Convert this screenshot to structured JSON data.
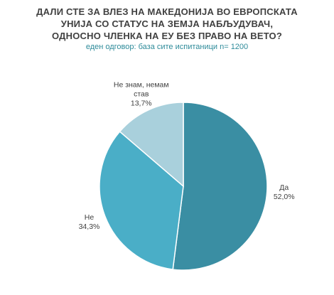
{
  "chart_data": {
    "type": "pie",
    "title": "ДАЛИ СТЕ ЗА ВЛЕЗ НА МАКЕДОНИЈА ВО ЕВРОПСКАТА УНИЈА СО СТАТУС НА ЗЕМЈА НАБЉУДУВАЧ, ОДНОСНО ЧЛЕНКА НА ЕУ БЕЗ ПРАВО НА ВЕТО?",
    "subtitle": "еден одговор: база сите испитаници n= 1200",
    "categories": [
      "Да",
      "Не",
      "Не знам, немам став"
    ],
    "values": [
      52.0,
      34.3,
      13.7
    ],
    "value_labels": [
      "52,0%",
      "34,3%",
      "13,7%"
    ],
    "colors": [
      "#3a8ea3",
      "#4aaec7",
      "#a9d0dc"
    ]
  }
}
